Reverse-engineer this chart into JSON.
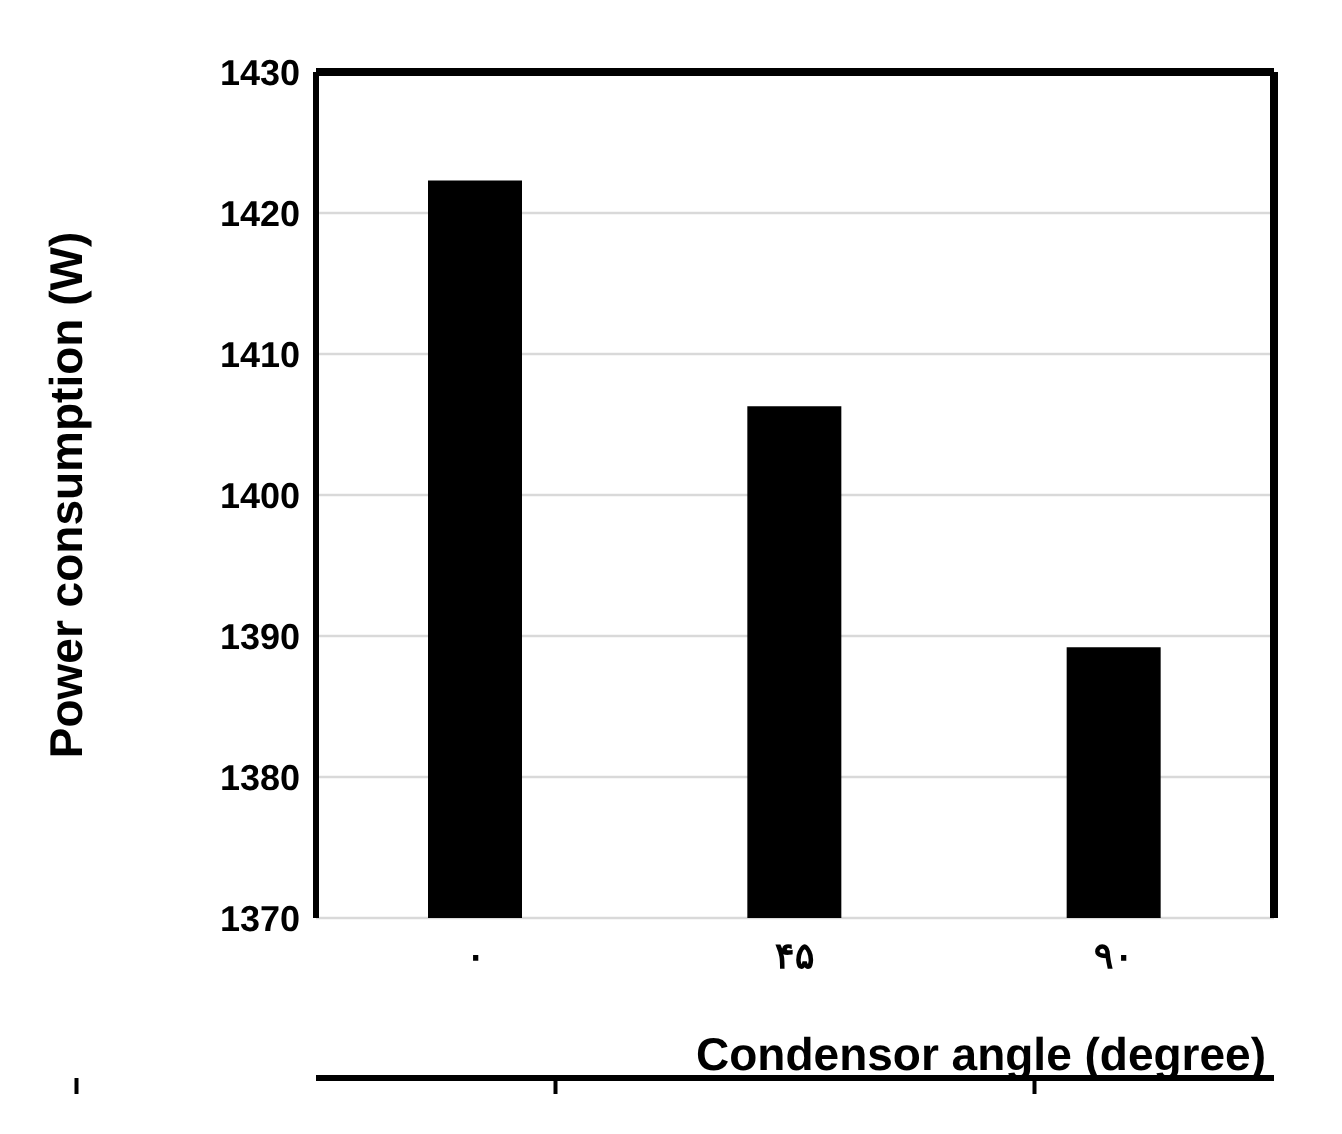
{
  "chart_data": {
    "type": "bar",
    "xlabel": "Condensor angle (degree)",
    "ylabel": "Power consumption (W)",
    "categories": [
      "۰",
      "۴۵",
      "۹۰"
    ],
    "values": [
      1422.3,
      1406.3,
      1389.2
    ],
    "color": "#000000",
    "ylim": [
      1370,
      1430
    ],
    "yticks": [
      1370,
      1380,
      1390,
      1400,
      1410,
      1420,
      1430
    ],
    "grid": "y"
  }
}
